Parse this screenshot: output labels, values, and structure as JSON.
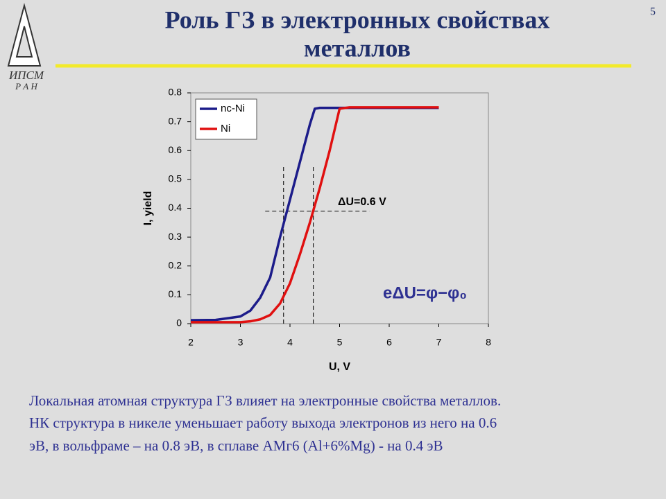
{
  "slide": {
    "number": "5",
    "title": [
      "Роль ГЗ в электронных свойствах",
      "металлов"
    ],
    "logo": "ИПСМ",
    "logo_sub": "Р А Н",
    "body": [
      "Локальная атомная структура ГЗ влияет на электронные свойства металлов.",
      "НК структура в никеле уменьшает работу выхода электронов из него на 0.6",
      "эВ, в вольфраме – на 0.8 эВ, в сплаве АМг6 (Al+6%Mg) - на 0.4 эВ"
    ]
  },
  "chart_data": {
    "type": "line",
    "xlabel": "U, V",
    "ylabel": "I, yield",
    "x": [
      2,
      2.5,
      3,
      3.2,
      3.4,
      3.6,
      3.8,
      4,
      4.2,
      4.4,
      4.5,
      4.6,
      4.8,
      5,
      5.2,
      6,
      7
    ],
    "series": [
      {
        "name": "nc-Ni",
        "color": "#1c1c8a",
        "values": [
          0.012,
          0.013,
          0.025,
          0.045,
          0.09,
          0.16,
          0.3,
          0.43,
          0.56,
          0.69,
          0.745,
          0.748,
          0.748,
          0.748,
          0.748,
          0.748,
          0.748
        ]
      },
      {
        "name": "Ni",
        "color": "#e01010",
        "values": [
          0.005,
          0.005,
          0.005,
          0.008,
          0.015,
          0.03,
          0.07,
          0.14,
          0.24,
          0.35,
          0.41,
          0.47,
          0.6,
          0.745,
          0.75,
          0.75,
          0.75
        ]
      }
    ],
    "xlim": [
      2,
      8
    ],
    "xticks": [
      2,
      3,
      4,
      5,
      6,
      7,
      8
    ],
    "ylim": [
      0,
      0.8
    ],
    "yticks": [
      0,
      0.1,
      0.2,
      0.3,
      0.4,
      0.5,
      0.6,
      0.7,
      0.8
    ],
    "vlines": [
      3.87,
      4.47
    ],
    "vline_top": 0.55,
    "hline": 0.39,
    "hline_xlim": [
      3.5,
      5.6
    ],
    "annotations": [
      "ΔU=0.6 V",
      "eΔU=φ−φ₀"
    ],
    "legend": "upper left"
  }
}
